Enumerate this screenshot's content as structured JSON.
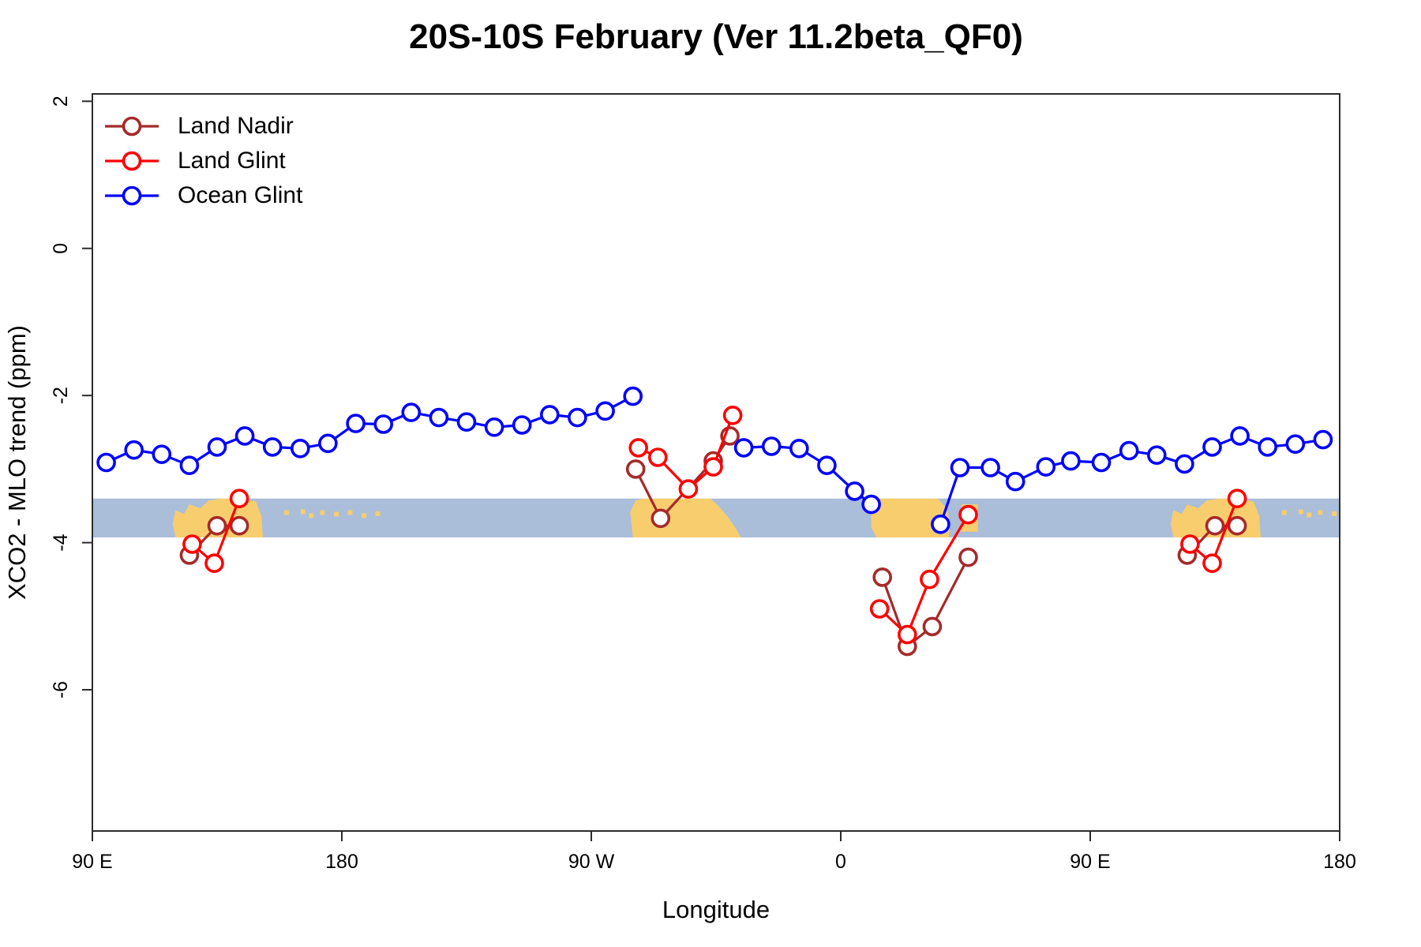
{
  "title": "20S-10S February (Ver 11.2beta_QF0)",
  "legend": {
    "items": [
      {
        "label": "Land Nadir",
        "color": "#a52a2a"
      },
      {
        "label": "Land Glint",
        "color": "#ff0000"
      },
      {
        "label": "Ocean Glint",
        "color": "#0000ff"
      }
    ]
  },
  "chart_data": {
    "type": "line",
    "title": "20S-10S February (Ver 11.2beta_QF0)",
    "xlabel": "Longitude",
    "ylabel": "XCO2 - MLO trend (ppm)",
    "x_units_note": "x = degrees eastward from 90E; axis spans 450 degrees (90E..180..90W..0..90E..180)",
    "xlim": [
      0,
      450
    ],
    "ylim": [
      -7.92,
      2.1
    ],
    "x_axis": {
      "ticks": [
        {
          "pos": 0,
          "label": "90 E"
        },
        {
          "pos": 90,
          "label": "180"
        },
        {
          "pos": 180,
          "label": "90 W"
        },
        {
          "pos": 270,
          "label": "0"
        },
        {
          "pos": 360,
          "label": "90 E"
        },
        {
          "pos": 450,
          "label": "180"
        }
      ]
    },
    "y_axis": {
      "ticks": [
        {
          "value": 2,
          "label": "2"
        },
        {
          "value": 0,
          "label": "0"
        },
        {
          "value": -2,
          "label": "-2"
        },
        {
          "value": -4,
          "label": "-4"
        },
        {
          "value": -6,
          "label": "-6"
        }
      ]
    },
    "series": [
      {
        "name": "Land Nadir",
        "color": "#a52a2a",
        "marker": "open-circle",
        "segments": [
          [
            [
              35,
              -4.17
            ],
            [
              45,
              -3.77
            ],
            [
              53,
              -3.77
            ]
          ],
          [
            [
              196,
              -3.0
            ],
            [
              205,
              -3.67
            ],
            [
              224,
              -2.89
            ],
            [
              230,
              -2.55
            ]
          ],
          [
            [
              285,
              -4.47
            ],
            [
              294,
              -5.41
            ],
            [
              303,
              -5.14
            ],
            [
              316,
              -4.2
            ]
          ],
          [
            [
              395,
              -4.17
            ],
            [
              405,
              -3.77
            ],
            [
              413,
              -3.77
            ]
          ]
        ]
      },
      {
        "name": "Land Glint",
        "color": "#ff0000",
        "marker": "open-circle",
        "segments": [
          [
            [
              36,
              -4.02
            ],
            [
              44,
              -4.28
            ],
            [
              53,
              -3.4
            ]
          ],
          [
            [
              197,
              -2.71
            ],
            [
              204,
              -2.84
            ],
            [
              215,
              -3.27
            ],
            [
              224,
              -2.97
            ],
            [
              231,
              -2.27
            ]
          ],
          [
            [
              284,
              -4.9
            ],
            [
              294,
              -5.25
            ],
            [
              302,
              -4.5
            ],
            [
              316,
              -3.62
            ]
          ],
          [
            [
              396,
              -4.02
            ],
            [
              404,
              -4.28
            ],
            [
              413,
              -3.4
            ]
          ]
        ]
      },
      {
        "name": "Ocean Glint",
        "color": "#0000ff",
        "marker": "open-circle",
        "segments": [
          [
            [
              5,
              -2.91
            ],
            [
              15,
              -2.74
            ],
            [
              25,
              -2.8
            ],
            [
              35,
              -2.95
            ],
            [
              45,
              -2.7
            ],
            [
              55,
              -2.55
            ],
            [
              65,
              -2.7
            ],
            [
              75,
              -2.72
            ],
            [
              85,
              -2.65
            ],
            [
              95,
              -2.38
            ],
            [
              105,
              -2.39
            ],
            [
              115,
              -2.23
            ],
            [
              125,
              -2.3
            ],
            [
              135,
              -2.36
            ],
            [
              145,
              -2.43
            ],
            [
              155,
              -2.4
            ],
            [
              165,
              -2.26
            ],
            [
              175,
              -2.3
            ],
            [
              185,
              -2.21
            ],
            [
              195,
              -2.01
            ]
          ],
          [
            [
              235,
              -2.71
            ],
            [
              245,
              -2.69
            ],
            [
              255,
              -2.72
            ],
            [
              265,
              -2.95
            ],
            [
              275,
              -3.3
            ],
            [
              281,
              -3.48
            ]
          ],
          [
            [
              306,
              -3.75
            ],
            [
              313,
              -2.98
            ],
            [
              324,
              -2.98
            ],
            [
              333,
              -3.17
            ],
            [
              344,
              -2.97
            ],
            [
              353,
              -2.89
            ],
            [
              364,
              -2.91
            ],
            [
              374,
              -2.75
            ],
            [
              384,
              -2.81
            ],
            [
              394,
              -2.93
            ],
            [
              404,
              -2.7
            ],
            [
              414,
              -2.55
            ],
            [
              424,
              -2.7
            ],
            [
              434,
              -2.66
            ],
            [
              444,
              -2.6
            ]
          ]
        ]
      }
    ],
    "map_band": {
      "description": "latitude-strip world map drawn across the plot between the two y values",
      "value_top": -3.4,
      "value_bottom": -3.93,
      "ocean_color": "#aabdd9",
      "land_color": "#f8cd6e",
      "land_patches": [
        {
          "name": "australia",
          "poly": [
            [
              29,
              0.65
            ],
            [
              30,
              0.3
            ],
            [
              33,
              0.4
            ],
            [
              35,
              0.15
            ],
            [
              39,
              0.25
            ],
            [
              42,
              0.05
            ],
            [
              47,
              0.0
            ],
            [
              54,
              0.0
            ],
            [
              59,
              0.08
            ],
            [
              61,
              0.45
            ],
            [
              61.5,
              1.0
            ],
            [
              30,
              1.0
            ]
          ]
        },
        {
          "name": "south-america",
          "poly": [
            [
              194,
              0.35
            ],
            [
              196,
              0.05
            ],
            [
              199,
              0.0
            ],
            [
              223,
              0.0
            ],
            [
              226,
              0.2
            ],
            [
              229,
              0.45
            ],
            [
              232,
              0.75
            ],
            [
              234,
              1.0
            ],
            [
              195,
              1.0
            ]
          ]
        },
        {
          "name": "africa",
          "poly": [
            [
              281,
              0.3
            ],
            [
              283,
              0.05
            ],
            [
              285,
              0.0
            ],
            [
              305,
              0.0
            ],
            [
              308,
              0.25
            ],
            [
              309.5,
              0.6
            ],
            [
              309,
              1.0
            ],
            [
              283,
              1.0
            ],
            [
              281,
              0.75
            ]
          ]
        },
        {
          "name": "madagascar",
          "poly": [
            [
              313.5,
              0.15
            ],
            [
              319.5,
              0.15
            ],
            [
              319.5,
              0.85
            ],
            [
              313.5,
              0.85
            ]
          ]
        },
        {
          "name": "australia-repeat",
          "poly": [
            [
              389,
              0.65
            ],
            [
              390,
              0.3
            ],
            [
              393,
              0.4
            ],
            [
              395,
              0.15
            ],
            [
              399,
              0.25
            ],
            [
              402,
              0.05
            ],
            [
              407,
              0.0
            ],
            [
              414,
              0.0
            ],
            [
              419,
              0.08
            ],
            [
              421,
              0.45
            ],
            [
              421.5,
              1.0
            ],
            [
              390,
              1.0
            ]
          ]
        }
      ],
      "island_speckles": [
        {
          "d": 70,
          "f": 0.3
        },
        {
          "d": 76,
          "f": 0.28
        },
        {
          "d": 79,
          "f": 0.38
        },
        {
          "d": 83,
          "f": 0.3
        },
        {
          "d": 88,
          "f": 0.34
        },
        {
          "d": 93,
          "f": 0.3
        },
        {
          "d": 98,
          "f": 0.38
        },
        {
          "d": 103,
          "f": 0.33
        },
        {
          "d": 430,
          "f": 0.3
        },
        {
          "d": 436,
          "f": 0.28
        },
        {
          "d": 439,
          "f": 0.36
        },
        {
          "d": 443,
          "f": 0.3
        },
        {
          "d": 448,
          "f": 0.33
        }
      ]
    }
  }
}
